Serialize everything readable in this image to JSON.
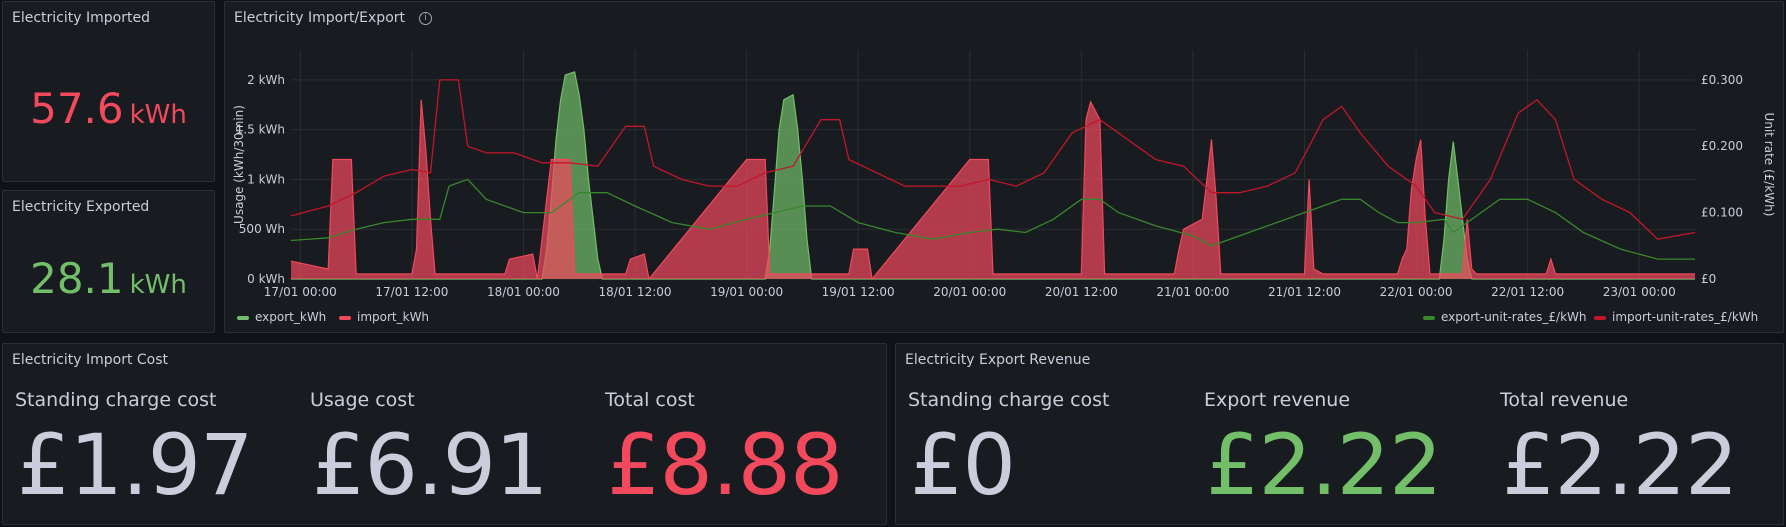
{
  "colors": {
    "green": "#73bf69",
    "red": "#f2495c",
    "green_line": "#37872d",
    "red_line": "#c4162a",
    "text": "#ccccdc"
  },
  "imported": {
    "title": "Electricity Imported",
    "value": "57.6",
    "unit": "kWh"
  },
  "exported": {
    "title": "Electricity Exported",
    "value": "28.1",
    "unit": "kWh"
  },
  "chart_panel": {
    "title": "Electricity Import/Export",
    "info_icon": "info-icon"
  },
  "chart_data": {
    "type": "line",
    "ylabel": "Usage (kWh/30min)",
    "y2label": "Unit rate (£/kWh)",
    "y_ticks": [
      "0 kWh",
      "500 Wh",
      "1 kWh",
      "1.5 kWh",
      "2 kWh"
    ],
    "y_tick_values": [
      0,
      0.5,
      1,
      1.5,
      2
    ],
    "ylim": [
      0,
      2.3
    ],
    "y2_ticks": [
      "£0",
      "£0.100",
      "£0.200",
      "£0.300"
    ],
    "y2_tick_values": [
      0,
      0.1,
      0.2,
      0.3
    ],
    "y2lim": [
      0,
      0.345
    ],
    "x_ticks": [
      "17/01 00:00",
      "17/01 12:00",
      "18/01 00:00",
      "18/01 12:00",
      "19/01 00:00",
      "19/01 12:00",
      "20/01 00:00",
      "20/01 12:00",
      "21/01 00:00",
      "21/01 12:00",
      "22/01 00:00",
      "22/01 12:00",
      "23/01 00:00"
    ],
    "x_range_hours": [
      -1,
      150
    ],
    "grid": true,
    "legend_left": [
      "export_kWh",
      "import_kWh"
    ],
    "legend_right": [
      "export-unit-rates_£/kWh",
      "import-unit-rates_£/kWh"
    ],
    "series": [
      {
        "name": "export_kWh",
        "axis": "left",
        "style": "area",
        "color": "#73bf69",
        "points": [
          [
            -1,
            0
          ],
          [
            26,
            0
          ],
          [
            26.5,
            0.3
          ],
          [
            27,
            0.8
          ],
          [
            27.5,
            1.4
          ],
          [
            28,
            1.8
          ],
          [
            28.5,
            2.05
          ],
          [
            29.5,
            2.08
          ],
          [
            30,
            1.85
          ],
          [
            30.5,
            1.5
          ],
          [
            31,
            1.0
          ],
          [
            31.5,
            0.6
          ],
          [
            32,
            0.2
          ],
          [
            32.5,
            0
          ],
          [
            50,
            0
          ],
          [
            50.5,
            0.3
          ],
          [
            51,
            0.9
          ],
          [
            51.5,
            1.5
          ],
          [
            52,
            1.8
          ],
          [
            53,
            1.85
          ],
          [
            53.5,
            1.5
          ],
          [
            54,
            1.0
          ],
          [
            54.5,
            0.4
          ],
          [
            55,
            0
          ],
          [
            122.5,
            0
          ],
          [
            123,
            0.4
          ],
          [
            123.5,
            1.0
          ],
          [
            124,
            1.38
          ],
          [
            124.5,
            1.0
          ],
          [
            125,
            0.6
          ],
          [
            125.5,
            0.2
          ],
          [
            126,
            0
          ],
          [
            150,
            0
          ]
        ]
      },
      {
        "name": "import_kWh",
        "axis": "left",
        "style": "area",
        "color": "#f2495c",
        "points": [
          [
            -1,
            0.18
          ],
          [
            2,
            0.12
          ],
          [
            3,
            0.1
          ],
          [
            3.5,
            1.2
          ],
          [
            5.5,
            1.2
          ],
          [
            6,
            0.05
          ],
          [
            12,
            0.05
          ],
          [
            12.5,
            0.3
          ],
          [
            13,
            1.8
          ],
          [
            13.5,
            1.3
          ],
          [
            14,
            0.6
          ],
          [
            14.5,
            0.05
          ],
          [
            22,
            0.05
          ],
          [
            22.5,
            0.2
          ],
          [
            25,
            0.25
          ],
          [
            25.5,
            0
          ],
          [
            27,
            1.2
          ],
          [
            29,
            1.2
          ],
          [
            29.5,
            0.05
          ],
          [
            35,
            0.05
          ],
          [
            35.5,
            0.2
          ],
          [
            37,
            0.25
          ],
          [
            37.5,
            0
          ],
          [
            48,
            1.2
          ],
          [
            50,
            1.2
          ],
          [
            50.5,
            0.05
          ],
          [
            59,
            0.05
          ],
          [
            59.5,
            0.3
          ],
          [
            61,
            0.3
          ],
          [
            61.5,
            0
          ],
          [
            72,
            1.2
          ],
          [
            74,
            1.2
          ],
          [
            74.5,
            0.05
          ],
          [
            84,
            0.05
          ],
          [
            84.5,
            1.6
          ],
          [
            85,
            1.78
          ],
          [
            86,
            1.6
          ],
          [
            86.5,
            0.05
          ],
          [
            94,
            0.05
          ],
          [
            94.5,
            0.3
          ],
          [
            95,
            0.5
          ],
          [
            97,
            0.6
          ],
          [
            97.5,
            1.0
          ],
          [
            98,
            1.4
          ],
          [
            98.5,
            0.8
          ],
          [
            99,
            0.05
          ],
          [
            108,
            0.05
          ],
          [
            108.5,
            1.0
          ],
          [
            109,
            0.1
          ],
          [
            110,
            0.05
          ],
          [
            118,
            0.05
          ],
          [
            118.5,
            0.2
          ],
          [
            119,
            0.3
          ],
          [
            119.5,
            0.9
          ],
          [
            120,
            1.2
          ],
          [
            120.5,
            1.4
          ],
          [
            121,
            0.6
          ],
          [
            121.5,
            0.05
          ],
          [
            125,
            0.05
          ],
          [
            125.5,
            0.6
          ],
          [
            126,
            0.1
          ],
          [
            126.5,
            0.05
          ],
          [
            134,
            0.05
          ],
          [
            134.5,
            0.2
          ],
          [
            135,
            0.05
          ],
          [
            150,
            0.05
          ]
        ]
      },
      {
        "name": "export-unit-rates_£/kWh",
        "axis": "right",
        "style": "line",
        "color": "#37872d",
        "points": [
          [
            -1,
            0.058
          ],
          [
            3,
            0.062
          ],
          [
            6,
            0.075
          ],
          [
            9,
            0.085
          ],
          [
            12,
            0.09
          ],
          [
            15,
            0.09
          ],
          [
            16,
            0.14
          ],
          [
            18,
            0.15
          ],
          [
            20,
            0.12
          ],
          [
            24,
            0.1
          ],
          [
            27,
            0.1
          ],
          [
            30,
            0.13
          ],
          [
            33,
            0.13
          ],
          [
            36,
            0.11
          ],
          [
            40,
            0.085
          ],
          [
            44,
            0.075
          ],
          [
            48,
            0.09
          ],
          [
            51,
            0.1
          ],
          [
            54,
            0.11
          ],
          [
            57,
            0.11
          ],
          [
            60,
            0.085
          ],
          [
            64,
            0.07
          ],
          [
            68,
            0.06
          ],
          [
            72,
            0.07
          ],
          [
            75,
            0.075
          ],
          [
            78,
            0.07
          ],
          [
            81,
            0.09
          ],
          [
            84,
            0.12
          ],
          [
            86,
            0.12
          ],
          [
            88,
            0.1
          ],
          [
            92,
            0.08
          ],
          [
            96,
            0.065
          ],
          [
            98,
            0.05
          ],
          [
            100,
            0.06
          ],
          [
            104,
            0.08
          ],
          [
            108,
            0.1
          ],
          [
            112,
            0.12
          ],
          [
            114,
            0.12
          ],
          [
            116,
            0.1
          ],
          [
            118,
            0.085
          ],
          [
            120,
            0.085
          ],
          [
            123,
            0.09
          ],
          [
            124,
            0.07
          ],
          [
            127,
            0.1
          ],
          [
            129,
            0.12
          ],
          [
            132,
            0.12
          ],
          [
            135,
            0.1
          ],
          [
            138,
            0.07
          ],
          [
            142,
            0.045
          ],
          [
            146,
            0.03
          ],
          [
            150,
            0.03
          ]
        ]
      },
      {
        "name": "import-unit-rates_£/kWh",
        "axis": "right",
        "style": "line",
        "color": "#c4162a",
        "points": [
          [
            -1,
            0.095
          ],
          [
            3,
            0.11
          ],
          [
            6,
            0.13
          ],
          [
            9,
            0.155
          ],
          [
            12,
            0.165
          ],
          [
            14,
            0.16
          ],
          [
            15,
            0.3
          ],
          [
            17,
            0.3
          ],
          [
            18,
            0.2
          ],
          [
            20,
            0.19
          ],
          [
            23,
            0.19
          ],
          [
            26,
            0.175
          ],
          [
            29,
            0.175
          ],
          [
            32,
            0.17
          ],
          [
            35,
            0.23
          ],
          [
            37,
            0.23
          ],
          [
            38,
            0.17
          ],
          [
            41,
            0.15
          ],
          [
            44,
            0.14
          ],
          [
            47,
            0.14
          ],
          [
            50,
            0.16
          ],
          [
            53,
            0.17
          ],
          [
            56,
            0.24
          ],
          [
            58,
            0.24
          ],
          [
            59,
            0.18
          ],
          [
            62,
            0.16
          ],
          [
            65,
            0.14
          ],
          [
            68,
            0.14
          ],
          [
            71,
            0.14
          ],
          [
            74,
            0.15
          ],
          [
            77,
            0.14
          ],
          [
            80,
            0.16
          ],
          [
            83,
            0.22
          ],
          [
            86,
            0.24
          ],
          [
            89,
            0.21
          ],
          [
            92,
            0.18
          ],
          [
            95,
            0.17
          ],
          [
            98,
            0.13
          ],
          [
            101,
            0.13
          ],
          [
            104,
            0.14
          ],
          [
            107,
            0.16
          ],
          [
            110,
            0.24
          ],
          [
            112,
            0.26
          ],
          [
            114,
            0.22
          ],
          [
            117,
            0.17
          ],
          [
            120,
            0.14
          ],
          [
            122,
            0.1
          ],
          [
            125,
            0.09
          ],
          [
            128,
            0.15
          ],
          [
            131,
            0.25
          ],
          [
            133,
            0.27
          ],
          [
            135,
            0.24
          ],
          [
            137,
            0.15
          ],
          [
            140,
            0.12
          ],
          [
            143,
            0.1
          ],
          [
            146,
            0.06
          ],
          [
            150,
            0.07
          ]
        ]
      }
    ]
  },
  "import_cost": {
    "title": "Electricity Import Cost",
    "cells": [
      {
        "label": "Standing charge cost",
        "value": "£1.97"
      },
      {
        "label": "Usage cost",
        "value": "£6.91"
      },
      {
        "label": "Total cost",
        "value": "£8.88"
      }
    ]
  },
  "export_revenue": {
    "title": "Electricity Export Revenue",
    "cells": [
      {
        "label": "Standing charge cost",
        "value": "£0"
      },
      {
        "label": "Export revenue",
        "value": "£2.22"
      },
      {
        "label": "Total revenue",
        "value": "£2.22"
      }
    ]
  }
}
